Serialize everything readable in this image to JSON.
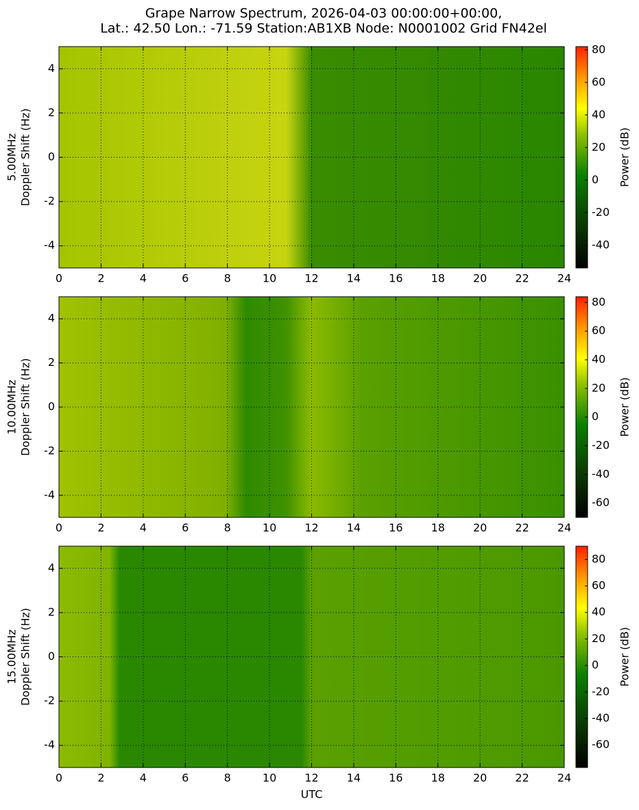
{
  "chart_data": [
    {
      "type": "spectrogram",
      "title": [
        "Grape Narrow Spectrum, 2026-04-03 00:00:00+00:00,",
        "Lat.: 42.50 Lon.: -71.59 Station:AB1XB Node: N0001002 Grid FN42el"
      ],
      "ylabel": [
        "5.00MHz",
        "Doppler Shift (Hz)"
      ],
      "xlim": [
        0,
        24
      ],
      "xticks": [
        0,
        2,
        4,
        6,
        8,
        10,
        12,
        14,
        16,
        18,
        20,
        22,
        24
      ],
      "ylim": [
        -5,
        5
      ],
      "yticks": [
        -4,
        -2,
        0,
        2,
        4
      ],
      "grid": true,
      "colorbar": {
        "label": "Power (dB)",
        "lim": [
          -54,
          82
        ],
        "ticks": [
          -40,
          -20,
          0,
          20,
          40,
          60,
          80
        ]
      }
    },
    {
      "type": "spectrogram",
      "ylabel": [
        "10.00MHz",
        "Doppler Shift (Hz)"
      ],
      "xlim": [
        0,
        24
      ],
      "xticks": [
        0,
        2,
        4,
        6,
        8,
        10,
        12,
        14,
        16,
        18,
        20,
        22,
        24
      ],
      "ylim": [
        -5,
        5
      ],
      "yticks": [
        -4,
        -2,
        0,
        2,
        4
      ],
      "grid": true,
      "colorbar": {
        "label": "Power (dB)",
        "lim": [
          -70,
          84
        ],
        "ticks": [
          -60,
          -40,
          -20,
          0,
          20,
          40,
          60,
          80
        ]
      }
    },
    {
      "type": "spectrogram",
      "ylabel": [
        "15.00MHz",
        "Doppler Shift (Hz)"
      ],
      "xlabel": "UTC",
      "xlim": [
        0,
        24
      ],
      "xticks": [
        0,
        2,
        4,
        6,
        8,
        10,
        12,
        14,
        16,
        18,
        20,
        22,
        24
      ],
      "ylim": [
        -5,
        5
      ],
      "yticks": [
        -4,
        -2,
        0,
        2,
        4
      ],
      "grid": true,
      "colorbar": {
        "label": "Power (dB)",
        "lim": [
          -77,
          90
        ],
        "ticks": [
          -60,
          -40,
          -20,
          0,
          20,
          40,
          60,
          80
        ]
      }
    }
  ]
}
